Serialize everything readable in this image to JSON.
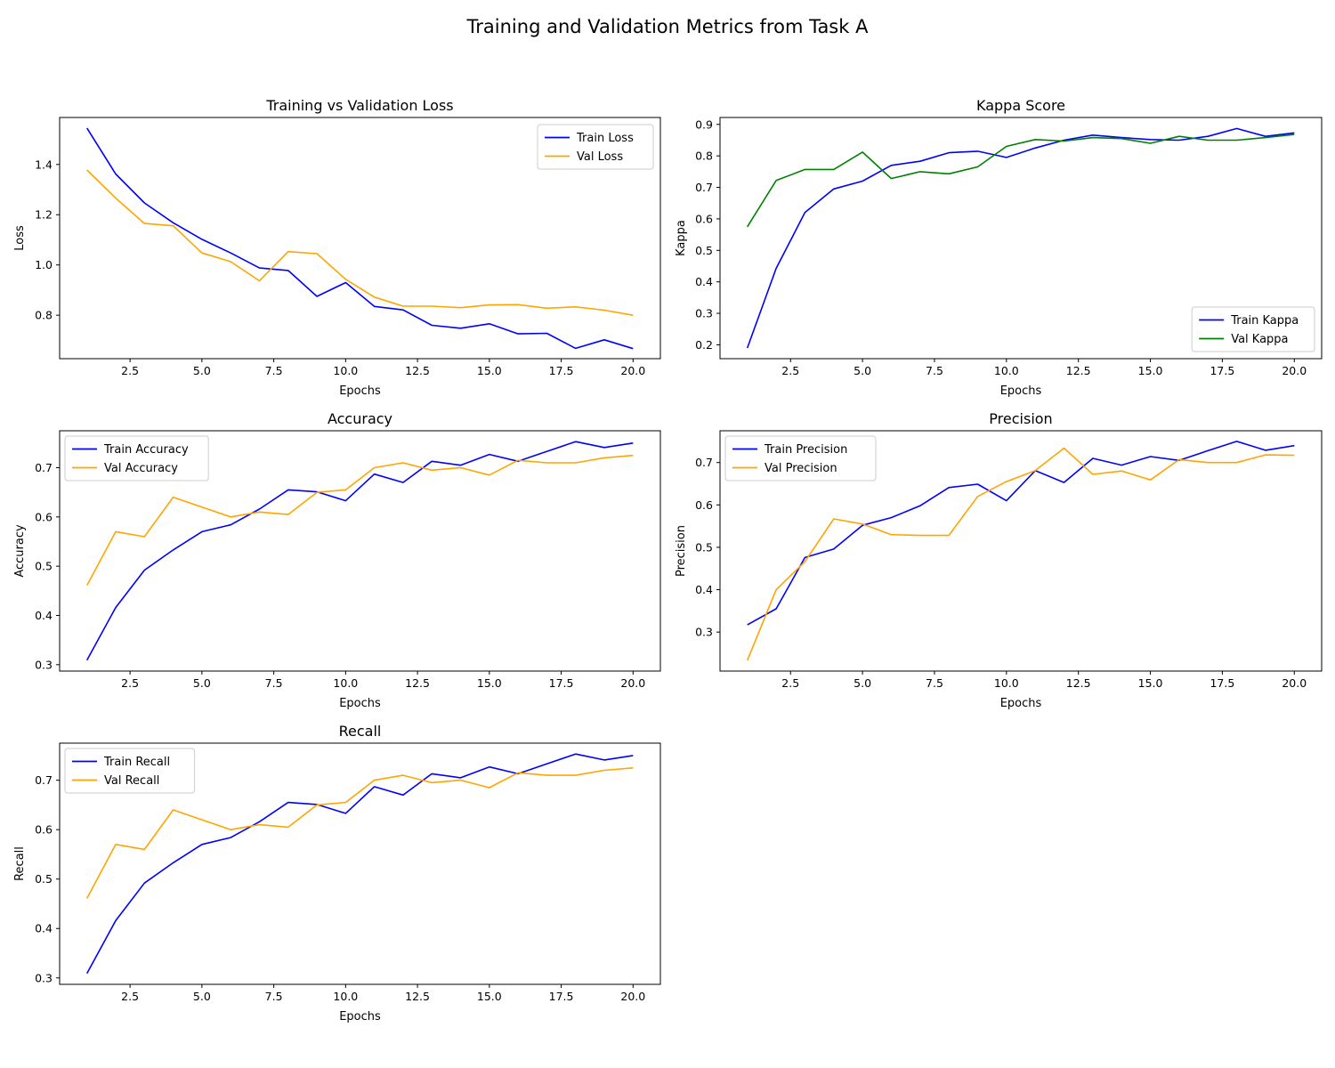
{
  "figure_title": "Training and Validation Metrics from Task A",
  "chart_data": [
    {
      "type": "line",
      "title": "Training vs Validation Loss",
      "xlabel": "Epochs",
      "ylabel": "Loss",
      "xlim": [
        0.05,
        20.95
      ],
      "ylim": [
        0.627,
        1.587
      ],
      "xticks": [
        "2.5",
        "5.0",
        "7.5",
        "10.0",
        "12.5",
        "15.0",
        "17.5",
        "20.0"
      ],
      "yticks": [
        "0.8",
        "1.0",
        "1.2",
        "1.4"
      ],
      "legend_position": "top-right",
      "x": [
        1,
        2,
        3,
        4,
        5,
        6,
        7,
        8,
        9,
        10,
        11,
        12,
        13,
        14,
        15,
        16,
        17,
        18,
        19,
        20
      ],
      "series": [
        {
          "name": "Train Loss",
          "color": "#0000ff",
          "values": [
            1.545,
            1.362,
            1.247,
            1.168,
            1.102,
            1.048,
            0.988,
            0.978,
            0.875,
            0.93,
            0.835,
            0.821,
            0.76,
            0.748,
            0.766,
            0.726,
            0.728,
            0.668,
            0.702,
            0.667
          ]
        },
        {
          "name": "Val Loss",
          "color": "#ffa500",
          "values": [
            1.378,
            1.266,
            1.165,
            1.156,
            1.048,
            1.013,
            0.937,
            1.053,
            1.045,
            0.943,
            0.872,
            0.836,
            0.836,
            0.83,
            0.841,
            0.842,
            0.828,
            0.833,
            0.82,
            0.8
          ]
        }
      ]
    },
    {
      "type": "line",
      "title": "Kappa Score",
      "xlabel": "Epochs",
      "ylabel": "Kappa",
      "xlim": [
        0.05,
        20.95
      ],
      "ylim": [
        0.156,
        0.922
      ],
      "xticks": [
        "2.5",
        "5.0",
        "7.5",
        "10.0",
        "12.5",
        "15.0",
        "17.5",
        "20.0"
      ],
      "yticks": [
        "0.2",
        "0.3",
        "0.4",
        "0.5",
        "0.6",
        "0.7",
        "0.8",
        "0.9"
      ],
      "legend_position": "bottom-right",
      "x": [
        1,
        2,
        3,
        4,
        5,
        6,
        7,
        8,
        9,
        10,
        11,
        12,
        13,
        14,
        15,
        16,
        17,
        18,
        19,
        20
      ],
      "series": [
        {
          "name": "Train Kappa",
          "color": "#0000ff",
          "values": [
            0.19,
            0.443,
            0.62,
            0.695,
            0.72,
            0.77,
            0.783,
            0.81,
            0.815,
            0.795,
            0.825,
            0.85,
            0.866,
            0.858,
            0.852,
            0.85,
            0.862,
            0.887,
            0.862,
            0.873
          ]
        },
        {
          "name": "Val Kappa",
          "color": "#008000",
          "values": [
            0.575,
            0.722,
            0.757,
            0.757,
            0.812,
            0.728,
            0.75,
            0.743,
            0.765,
            0.83,
            0.852,
            0.847,
            0.858,
            0.855,
            0.84,
            0.862,
            0.85,
            0.85,
            0.858,
            0.868
          ]
        }
      ]
    },
    {
      "type": "line",
      "title": "Accuracy",
      "xlabel": "Epochs",
      "ylabel": "Accuracy",
      "xlim": [
        0.05,
        20.95
      ],
      "ylim": [
        0.287,
        0.775
      ],
      "xticks": [
        "2.5",
        "5.0",
        "7.5",
        "10.0",
        "12.5",
        "15.0",
        "17.5",
        "20.0"
      ],
      "yticks": [
        "0.3",
        "0.4",
        "0.5",
        "0.6",
        "0.7"
      ],
      "legend_position": "top-left",
      "x": [
        1,
        2,
        3,
        4,
        5,
        6,
        7,
        8,
        9,
        10,
        11,
        12,
        13,
        14,
        15,
        16,
        17,
        18,
        19,
        20
      ],
      "series": [
        {
          "name": "Train Accuracy",
          "color": "#0000ff",
          "values": [
            0.309,
            0.416,
            0.492,
            0.533,
            0.57,
            0.584,
            0.616,
            0.655,
            0.651,
            0.633,
            0.687,
            0.67,
            0.713,
            0.705,
            0.727,
            0.713,
            0.733,
            0.753,
            0.741,
            0.75
          ]
        },
        {
          "name": "Val Accuracy",
          "color": "#ffa500",
          "values": [
            0.461,
            0.57,
            0.56,
            0.64,
            0.62,
            0.6,
            0.61,
            0.605,
            0.65,
            0.655,
            0.7,
            0.71,
            0.695,
            0.7,
            0.685,
            0.715,
            0.71,
            0.71,
            0.72,
            0.725
          ]
        }
      ]
    },
    {
      "type": "line",
      "title": "Precision",
      "xlabel": "Epochs",
      "ylabel": "Precision",
      "xlim": [
        0.05,
        20.95
      ],
      "ylim": [
        0.208,
        0.775
      ],
      "xticks": [
        "2.5",
        "5.0",
        "7.5",
        "10.0",
        "12.5",
        "15.0",
        "17.5",
        "20.0"
      ],
      "yticks": [
        "0.3",
        "0.4",
        "0.5",
        "0.6",
        "0.7"
      ],
      "legend_position": "top-left",
      "x": [
        1,
        2,
        3,
        4,
        5,
        6,
        7,
        8,
        9,
        10,
        11,
        12,
        13,
        14,
        15,
        16,
        17,
        18,
        19,
        20
      ],
      "series": [
        {
          "name": "Train Precision",
          "color": "#0000ff",
          "values": [
            0.317,
            0.355,
            0.476,
            0.496,
            0.552,
            0.57,
            0.598,
            0.641,
            0.649,
            0.61,
            0.681,
            0.653,
            0.71,
            0.694,
            0.714,
            0.705,
            0.728,
            0.75,
            0.729,
            0.74
          ]
        },
        {
          "name": "Val Precision",
          "color": "#ffa500",
          "values": [
            0.233,
            0.4,
            0.466,
            0.567,
            0.555,
            0.53,
            0.528,
            0.528,
            0.62,
            0.655,
            0.681,
            0.734,
            0.672,
            0.68,
            0.659,
            0.707,
            0.7,
            0.7,
            0.718,
            0.717
          ]
        }
      ]
    },
    {
      "type": "line",
      "title": "Recall",
      "xlabel": "Epochs",
      "ylabel": "Recall",
      "xlim": [
        0.05,
        20.95
      ],
      "ylim": [
        0.287,
        0.775
      ],
      "xticks": [
        "2.5",
        "5.0",
        "7.5",
        "10.0",
        "12.5",
        "15.0",
        "17.5",
        "20.0"
      ],
      "yticks": [
        "0.3",
        "0.4",
        "0.5",
        "0.6",
        "0.7"
      ],
      "legend_position": "top-left",
      "x": [
        1,
        2,
        3,
        4,
        5,
        6,
        7,
        8,
        9,
        10,
        11,
        12,
        13,
        14,
        15,
        16,
        17,
        18,
        19,
        20
      ],
      "series": [
        {
          "name": "Train Recall",
          "color": "#0000ff",
          "values": [
            0.309,
            0.416,
            0.492,
            0.533,
            0.57,
            0.584,
            0.616,
            0.655,
            0.651,
            0.633,
            0.687,
            0.67,
            0.713,
            0.705,
            0.727,
            0.713,
            0.733,
            0.753,
            0.741,
            0.75
          ]
        },
        {
          "name": "Val Recall",
          "color": "#ffa500",
          "values": [
            0.461,
            0.57,
            0.56,
            0.64,
            0.62,
            0.6,
            0.61,
            0.605,
            0.65,
            0.655,
            0.7,
            0.71,
            0.695,
            0.7,
            0.685,
            0.715,
            0.71,
            0.71,
            0.72,
            0.725
          ]
        }
      ]
    }
  ]
}
